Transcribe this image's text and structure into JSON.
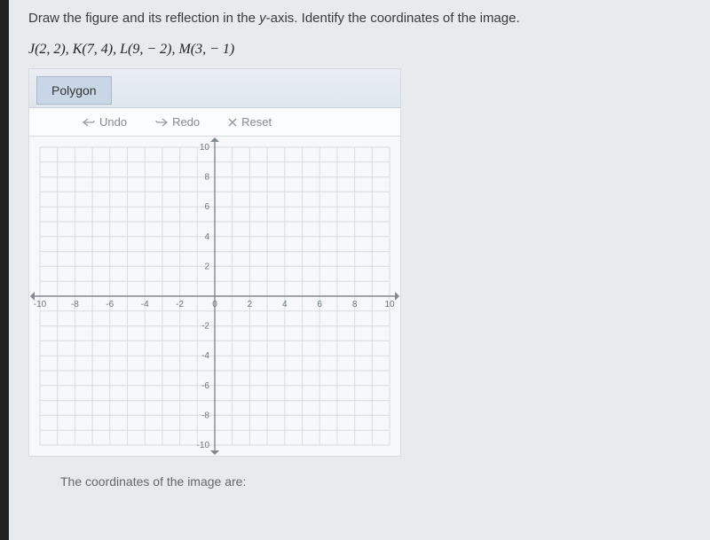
{
  "question": {
    "prompt_pre": "Draw the figure and its reflection in the ",
    "axis_var": "y",
    "prompt_post": "-axis. Identify the coordinates of the image."
  },
  "points_line": "J(2, 2), K(7, 4), L(9, − 2), M(3, − 1)",
  "widget": {
    "tab_label": "Polygon",
    "actions": {
      "undo": "Undo",
      "redo": "Redo",
      "reset": "Reset"
    }
  },
  "chart": {
    "type": "scatter-grid",
    "background_color": "#f6f8fa",
    "grid_color": "#d7dde3",
    "axis_color": "#808890",
    "label_color": "#6b7580",
    "label_fontsize": 10,
    "xlim": [
      -10,
      10
    ],
    "ylim": [
      -10,
      10
    ],
    "xtick_step": 2,
    "ytick_step": 2,
    "minor_grid_step": 1,
    "xlabels": [
      -10,
      -8,
      -6,
      -4,
      -2,
      0,
      2,
      4,
      6,
      8,
      10
    ],
    "ylabels_pos": [
      2,
      4,
      6,
      8,
      10
    ],
    "ylabels_neg": [
      -2,
      -4,
      -6,
      -8,
      -10
    ],
    "data_points": []
  },
  "footer": "The coordinates of the image are:"
}
